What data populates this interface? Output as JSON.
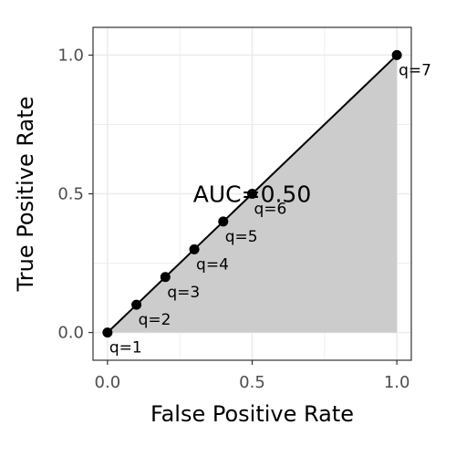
{
  "chart_data": {
    "type": "line",
    "xlabel": "False Positive Rate",
    "ylabel": "True Positive Rate",
    "xlim": [
      -0.05,
      1.05
    ],
    "ylim": [
      -0.1,
      1.1
    ],
    "x_ticks": [
      0.0,
      0.5,
      1.0
    ],
    "x_tick_labels": [
      "0.0",
      "0.5",
      "1.0"
    ],
    "y_ticks": [
      0.0,
      0.5,
      1.0
    ],
    "y_tick_labels": [
      "0.0",
      "0.5",
      "1.0"
    ],
    "grid": true,
    "shaded_area": true,
    "points": [
      {
        "x": 0.0,
        "y": 0.0,
        "label": "q=1"
      },
      {
        "x": 0.1,
        "y": 0.1,
        "label": "q=2"
      },
      {
        "x": 0.2,
        "y": 0.2,
        "label": "q=3"
      },
      {
        "x": 0.3,
        "y": 0.3,
        "label": "q=4"
      },
      {
        "x": 0.4,
        "y": 0.4,
        "label": "q=5"
      },
      {
        "x": 0.5,
        "y": 0.5,
        "label": "q=6"
      },
      {
        "x": 1.0,
        "y": 1.0,
        "label": "q=7"
      }
    ],
    "annotation": {
      "text": "AUC=0.50",
      "x": 0.5,
      "y": 0.5
    },
    "colors": {
      "line": "#000000",
      "area": "#cccccc",
      "grid": "#ebebeb",
      "border": "#333333"
    }
  }
}
